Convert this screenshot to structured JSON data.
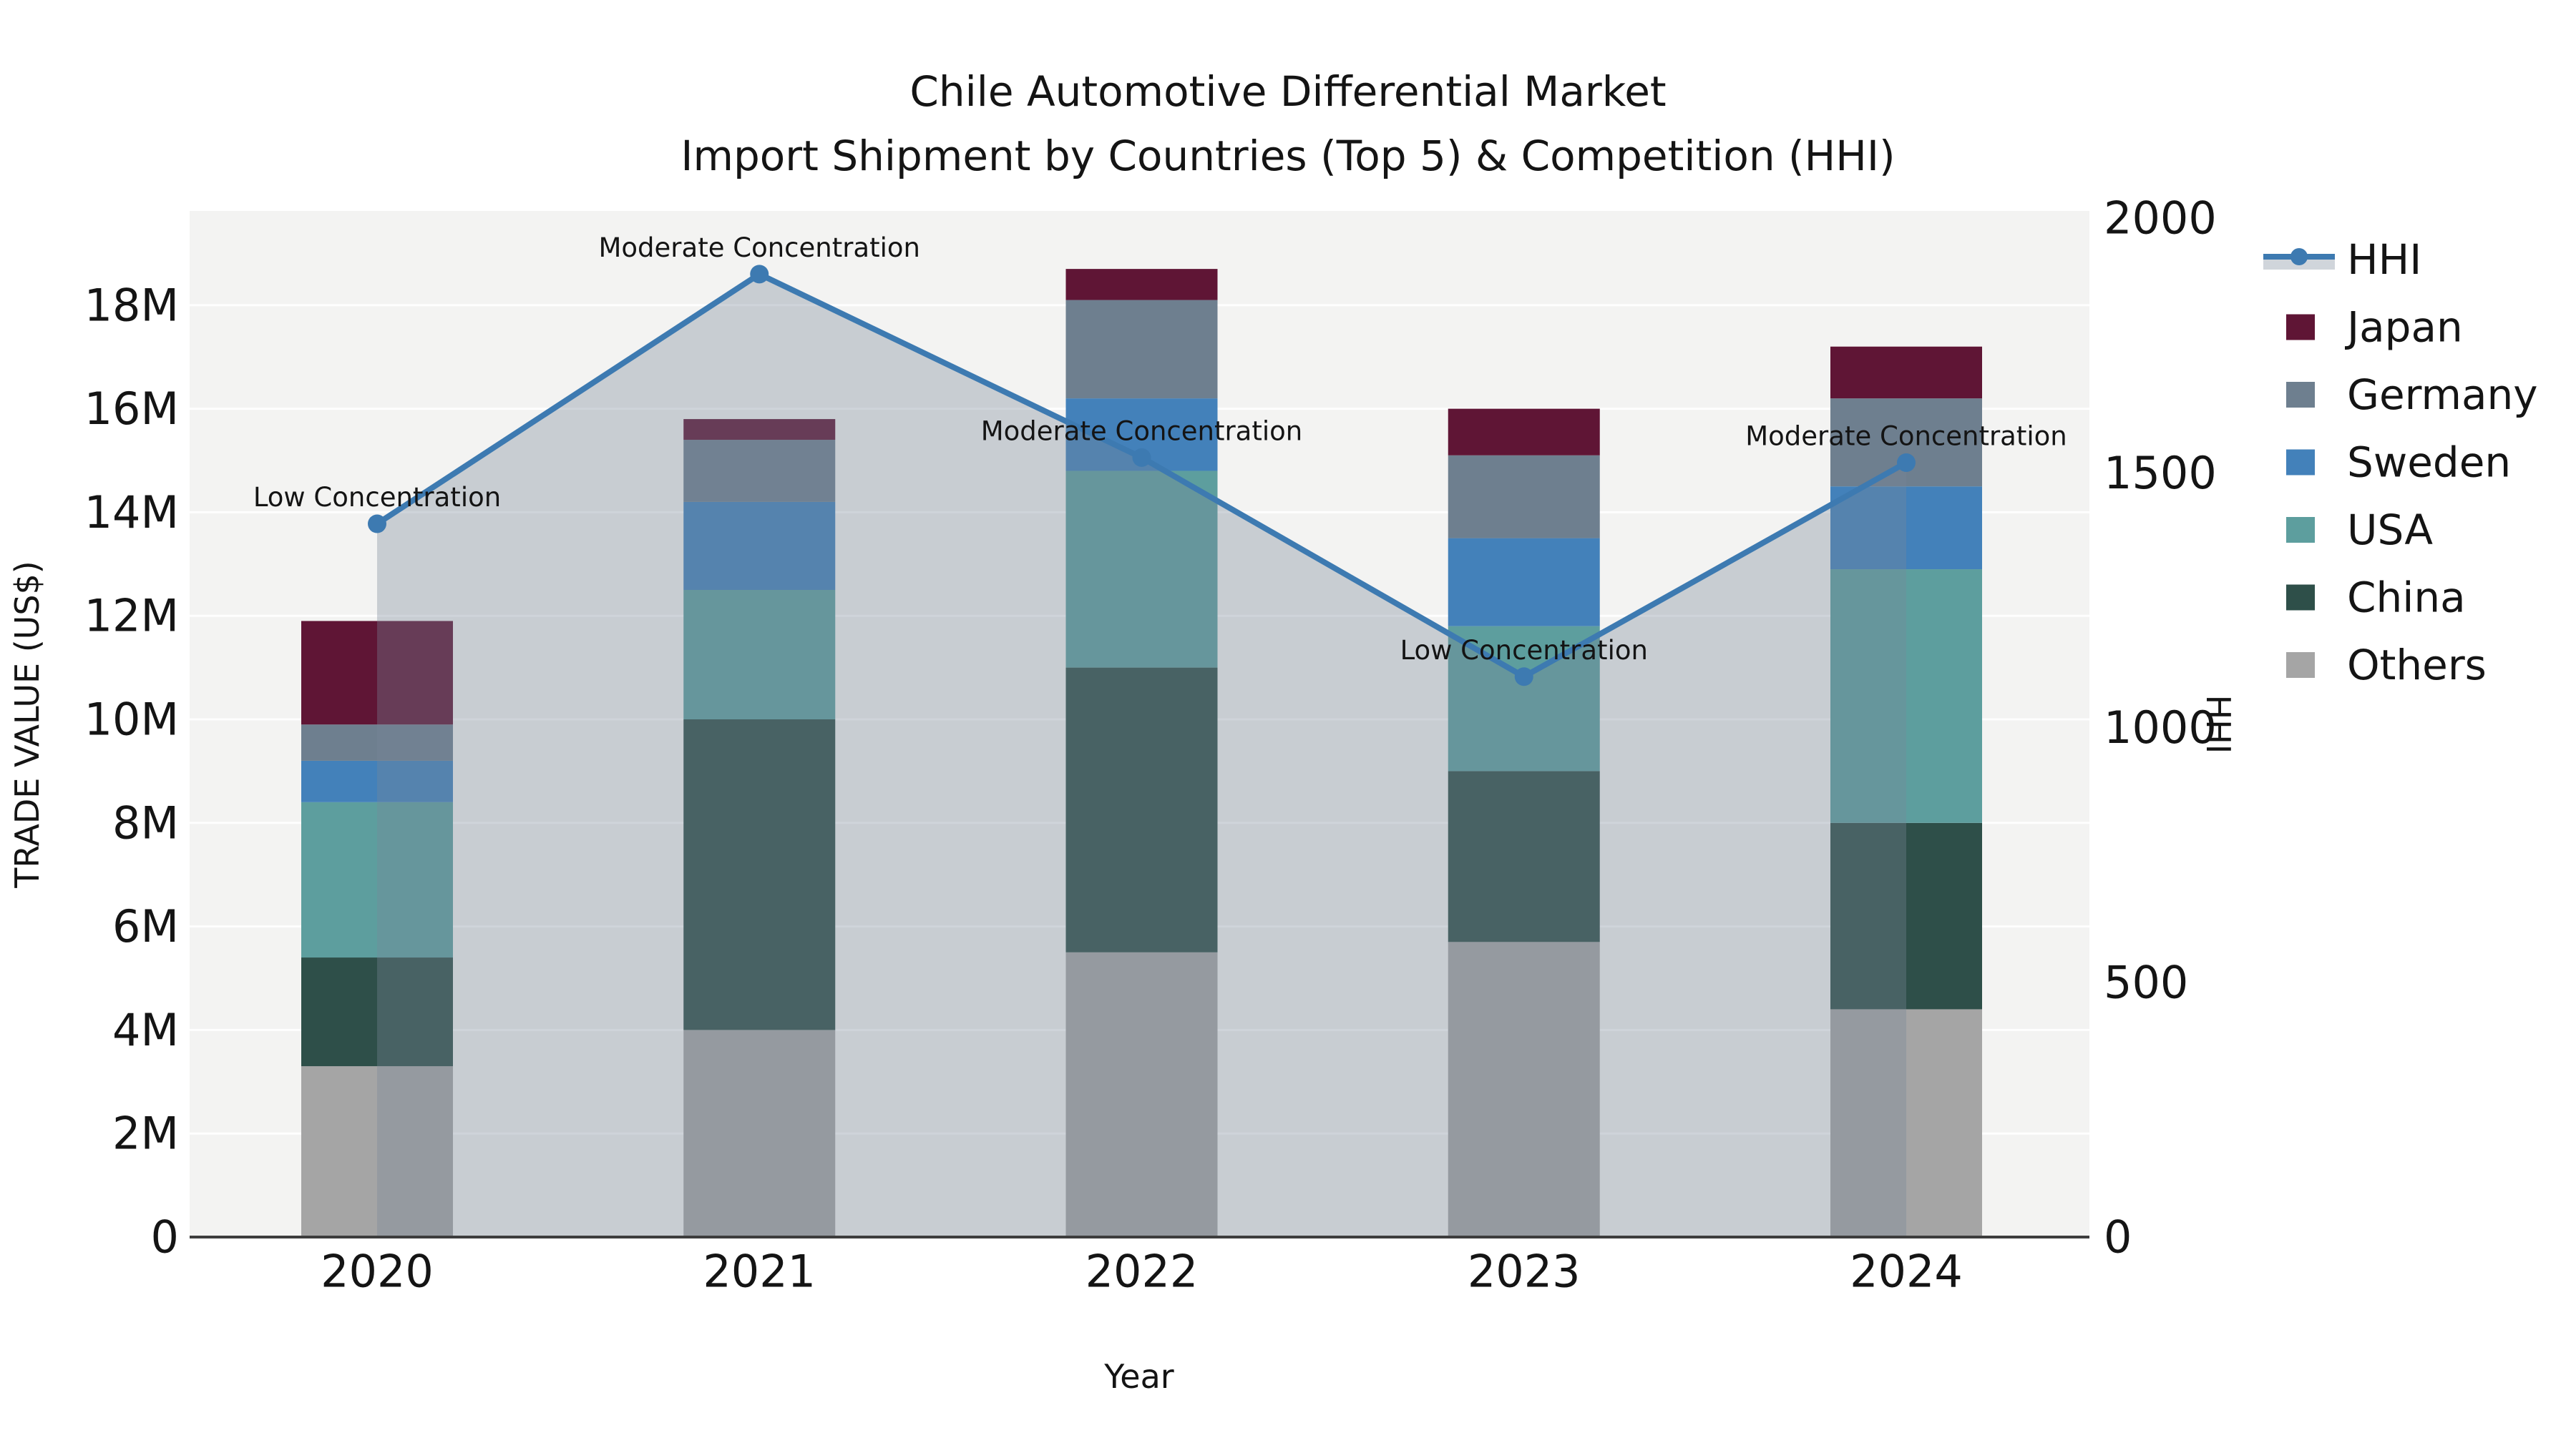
{
  "title": {
    "line1": "Chile Automotive Differential Market",
    "line2": "Import Shipment by Countries (Top 5) & Competition (HHI)"
  },
  "axes": {
    "x_title": "Year",
    "y_left_title": "TRADE VALUE (US$)",
    "y_right_title": "HHI",
    "y_left_ticks": [
      "0",
      "2M",
      "4M",
      "6M",
      "8M",
      "10M",
      "12M",
      "14M",
      "16M",
      "18M"
    ],
    "y_right_ticks": [
      "0",
      "500",
      "1000",
      "1500",
      "2000"
    ]
  },
  "legend": {
    "items": [
      {
        "label": "HHI",
        "type": "line",
        "color": "#3d7ab1"
      },
      {
        "label": "Japan",
        "type": "patch",
        "color": "#5f1535"
      },
      {
        "label": "Germany",
        "type": "patch",
        "color": "#6e7f8f"
      },
      {
        "label": "Sweden",
        "type": "patch",
        "color": "#4381ba"
      },
      {
        "label": "USA",
        "type": "patch",
        "color": "#5d9e9e"
      },
      {
        "label": "China",
        "type": "patch",
        "color": "#2e4f49"
      },
      {
        "label": "Others",
        "type": "patch",
        "color": "#a5a5a5"
      }
    ]
  },
  "chart_data": {
    "type": "combo-stacked-bar-line",
    "title": "Chile Automotive Differential Market / Import Shipment by Countries (Top 5) & Competition (HHI)",
    "categories": [
      "2020",
      "2021",
      "2022",
      "2023",
      "2024"
    ],
    "bar_value_unit": "USD millions",
    "series": [
      {
        "name": "Others",
        "color": "#a5a5a5",
        "values": [
          3.3,
          4.0,
          5.5,
          5.7,
          4.4
        ]
      },
      {
        "name": "China",
        "color": "#2e4f49",
        "values": [
          2.1,
          6.0,
          5.5,
          3.3,
          3.6
        ]
      },
      {
        "name": "USA",
        "color": "#5d9e9e",
        "values": [
          3.0,
          2.5,
          3.8,
          2.8,
          4.9
        ]
      },
      {
        "name": "Sweden",
        "color": "#4381ba",
        "values": [
          0.8,
          1.7,
          1.4,
          1.7,
          1.6
        ]
      },
      {
        "name": "Germany",
        "color": "#6e7f8f",
        "values": [
          0.7,
          1.2,
          1.9,
          1.6,
          1.7
        ]
      },
      {
        "name": "Japan",
        "color": "#5f1535",
        "values": [
          2.0,
          0.4,
          0.6,
          0.9,
          1.0
        ]
      }
    ],
    "bar_totals": [
      11.9,
      15.8,
      18.7,
      16.0,
      17.1
    ],
    "line_series": {
      "name": "HHI",
      "color": "#3d7ab1",
      "values": [
        1400,
        1890,
        1530,
        1100,
        1520
      ],
      "area_fill": "#778899",
      "area_opacity": 0.35
    },
    "annotations": [
      "Low Concentration",
      "Moderate Concentration",
      "Moderate Concentration",
      "Low Concentration",
      "Moderate Concentration"
    ],
    "xlabel": "Year",
    "ylabel_left": "TRADE VALUE (US$)",
    "ylabel_right": "HHI",
    "ylim_left": [
      0,
      19.8
    ],
    "ylim_right": [
      0,
      2014
    ],
    "grid": true,
    "legend_position": "right-outside",
    "plot_bg": "#f3f3f2"
  }
}
